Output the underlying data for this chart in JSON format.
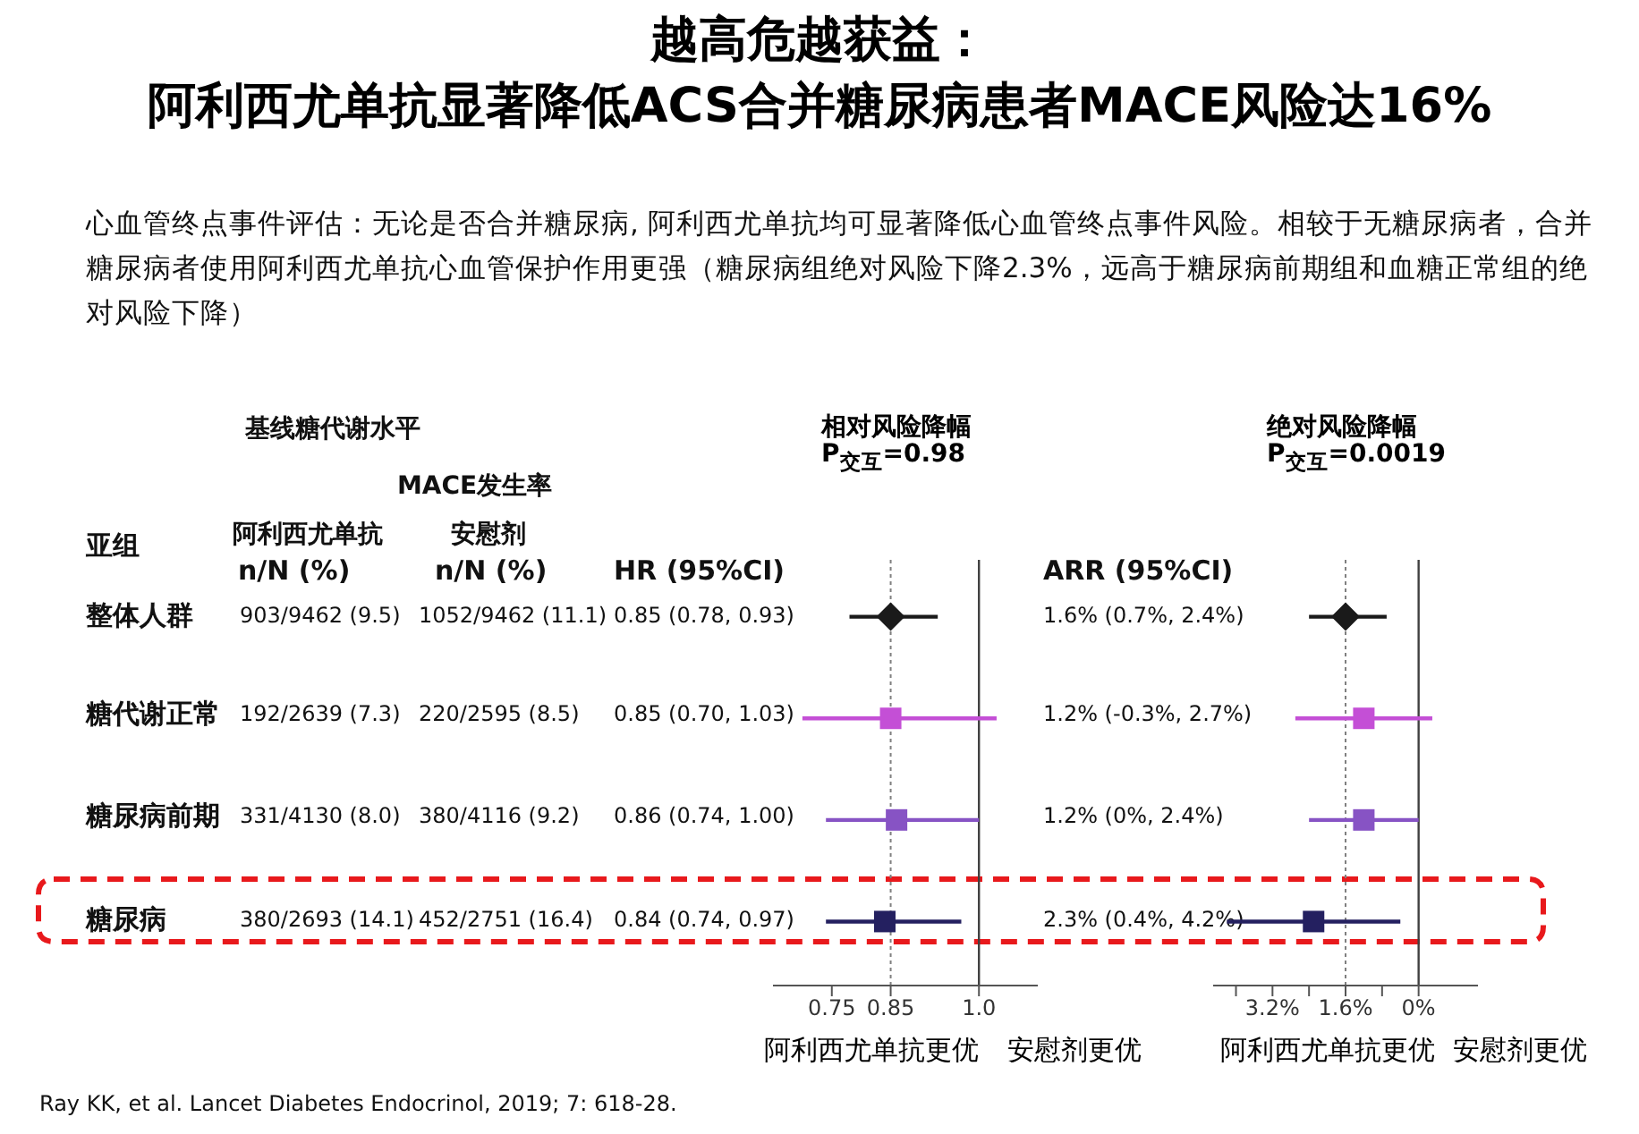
{
  "chart_data": [
    {
      "type": "other",
      "title": "越高危越获益：阿利西尤单抗显著降低ACS合并糖尿病患者MACE风险达16%",
      "subtitle": "心血管终点事件评估：无论是否合并糖尿病, 阿利西尤单抗均可显著降低心血管终点事件风险。相较于无糖尿病者，合并糖尿病者使用阿利西尤单抗心血管保护作用更强（糖尿病组绝对风险下降2.3%，远高于糖尿病前期组和血糖正常组的绝对风险下降）",
      "annotations": [
        "基线糖代谢水平",
        "MACE发生率",
        "亚组",
        "阿利西尤单抗",
        "n/N (%)",
        "安慰剂",
        "n/N (%)",
        "HR (95%CI)",
        "ARR (95%CI)",
        "整体人群",
        "糖代谢正常",
        "糖尿病前期",
        "糖尿病",
        "903/9462 (9.5)",
        "192/2639 (7.3)",
        "331/4130 (8.0)",
        "380/2693 (14.1)",
        "1052/9462 (11.1)",
        "220/2595 (8.5)",
        "380/4116 (9.2)",
        "452/2751 (16.4)",
        "0.85 (0.78, 0.93)",
        "0.85 (0.70, 1.03)",
        "0.86 (0.74, 1.00)",
        "0.84 (0.74, 0.97)",
        "1.6% (0.7%, 2.4%)",
        "1.2% (-0.3%, 2.7%)",
        "1.2% (0%, 2.4%)",
        "2.3% (0.4%, 4.2%)",
        "Ray KK, et al. Lancet Diabetes Endocrinol, 2019; 7: 618-28."
      ]
    },
    {
      "type": "scatter",
      "orientation": "horizontal",
      "title": "相对风险降幅",
      "subtitle": "P$_{交互}$=0.98",
      "categories": [
        null,
        null,
        null,
        null
      ],
      "tick_labels": "x",
      "series": [
        {
          "marker": "diamond",
          "color": "#1a1a1a",
          "values": [
            0.85,
            null,
            null,
            null
          ],
          "errors": [
            [
              0.78,
              0.93
            ],
            null,
            null,
            null
          ]
        },
        {
          "marker": "square",
          "color": "#c44fd6",
          "values": [
            null,
            0.85,
            null,
            null
          ],
          "errors": [
            null,
            [
              0.7,
              1.03
            ],
            null,
            null
          ]
        },
        {
          "marker": "square",
          "color": "#8753c4",
          "values": [
            null,
            null,
            0.86,
            null
          ],
          "errors": [
            null,
            null,
            [
              0.74,
              1.0
            ],
            null
          ]
        },
        {
          "marker": "square",
          "color": "#242060",
          "values": [
            null,
            null,
            null,
            0.84
          ],
          "errors": [
            null,
            null,
            null,
            [
              0.74,
              0.97
            ]
          ]
        }
      ],
      "xlim": [
        0.65,
        1.1
      ],
      "xticks": [
        0.75,
        0.85,
        {
          "value": 1,
          "label": "1.0"
        }
      ],
      "ref_lines": [
        {
          "axis": "x",
          "value": 1,
          "line_style": "solid",
          "color": "#404040"
        },
        {
          "axis": "x",
          "value": 0.85,
          "line_style": "dotted",
          "color": "#808080"
        }
      ],
      "annotations": [
        "阿利西尤单抗更优",
        "安慰剂更优"
      ]
    },
    {
      "type": "scatter",
      "orientation": "horizontal",
      "title": "绝对风险降幅",
      "subtitle": "P$_{交互}$=0.0019",
      "categories": [
        null,
        null,
        null,
        null
      ],
      "tick_labels": "x",
      "series": [
        {
          "marker": "diamond",
          "color": "#1a1a1a",
          "values": [
            1.6,
            null,
            null,
            null
          ],
          "errors": [
            [
              0.7,
              2.4
            ],
            null,
            null,
            null
          ]
        },
        {
          "marker": "square",
          "color": "#c44fd6",
          "values": [
            null,
            1.2,
            null,
            null
          ],
          "errors": [
            null,
            [
              -0.3,
              2.7
            ],
            null,
            null
          ]
        },
        {
          "marker": "square",
          "color": "#8753c4",
          "values": [
            null,
            null,
            1.2,
            null
          ],
          "errors": [
            null,
            null,
            [
              0,
              2.4
            ],
            null
          ]
        },
        {
          "marker": "square",
          "color": "#242060",
          "values": [
            null,
            null,
            null,
            2.3
          ],
          "errors": [
            null,
            null,
            null,
            [
              0.4,
              4.2
            ]
          ]
        }
      ],
      "xlim": [
        4.5,
        -1.3
      ],
      "xticks": [
        {
          "value": 4,
          "label": null
        },
        {
          "value": 3.2,
          "label": "3.2%"
        },
        {
          "value": 2.4,
          "label": null
        },
        {
          "value": 1.6,
          "label": "1.6%"
        },
        {
          "value": 0.8,
          "label": null
        },
        {
          "value": 0,
          "label": "0%"
        }
      ],
      "ref_lines": [
        {
          "axis": "x",
          "value": 0,
          "line_style": "solid",
          "color": "#404040"
        },
        {
          "axis": "x",
          "value": 1.6,
          "line_style": "dotted",
          "color": "#808080"
        }
      ],
      "annotations": [
        "阿利西尤单抗更优",
        "安慰剂更优"
      ]
    }
  ]
}
